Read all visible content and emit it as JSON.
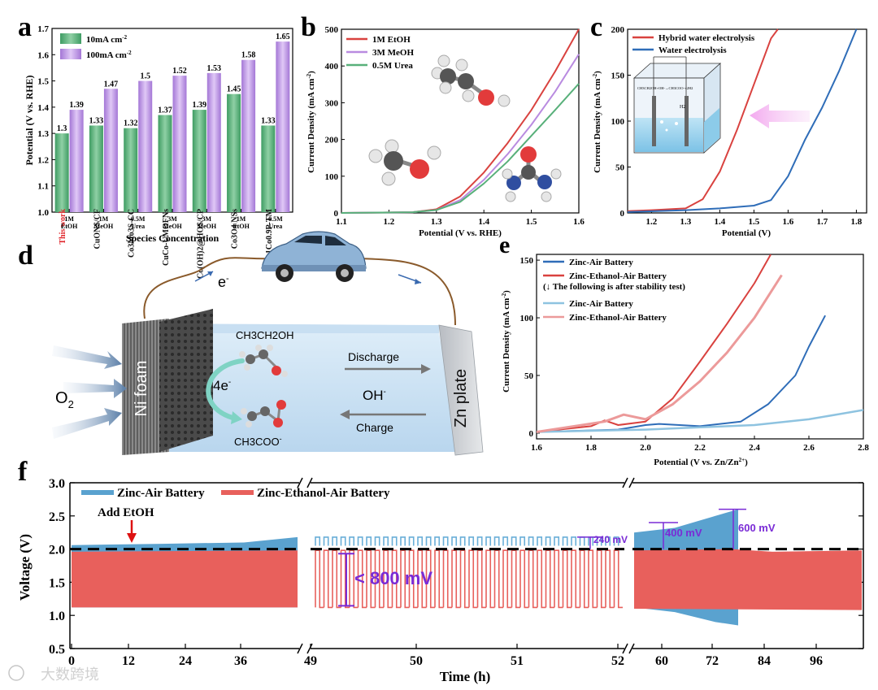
{
  "panel_labels": {
    "a": "a",
    "b": "b",
    "c": "c",
    "d": "d",
    "e": "e",
    "f": "f"
  },
  "watermark": "大数跨境",
  "colors": {
    "green": "#58b07a",
    "purple": "#b98be0",
    "red": "#d9423f",
    "blue": "#2f6db8",
    "lightblue": "#8ec3e0",
    "pink": "#ec9a9a"
  },
  "chart_data": [
    {
      "id": "a",
      "type": "bar",
      "ylabel": "Potential (V vs. RHE)",
      "xlabel": "Species Concentration",
      "ylim": [
        1.0,
        1.7
      ],
      "yticks": [
        "1.0",
        "1.1",
        "1.2",
        "1.3",
        "1.4",
        "1.5",
        "1.6",
        "1.7"
      ],
      "legend": [
        "10mA cm",
        "100mA cm"
      ],
      "legend_superscripts": [
        "-2",
        "-2"
      ],
      "categories": [
        "1M EtOH",
        "1M MeOH",
        "0.5M Urea",
        "3M MeOH",
        "3M MeOH",
        "1M EtOH",
        "0.5M Urea"
      ],
      "category_lines": [
        [
          "1M",
          "EtOH"
        ],
        [
          "1M",
          "MeOH"
        ],
        [
          "0.5M",
          "Urea"
        ],
        [
          "3M",
          "MeOH"
        ],
        [
          "3M",
          "MeOH"
        ],
        [
          "1M",
          "EtOH"
        ],
        [
          "0.5M",
          "Urea"
        ]
      ],
      "bar_names": [
        "This work",
        "CuONS/CF",
        "Co3Mo3S-CC",
        "CuCo-UMOFNs",
        "Co(OH)2@HOS/CP",
        "Co3O4 NSs",
        "Zn0.1Co0.9P-TM"
      ],
      "series": [
        {
          "name": "10mA cm-2",
          "values": [
            1.3,
            1.33,
            1.32,
            1.37,
            1.39,
            1.45,
            1.33
          ],
          "labels": [
            "1.3",
            "1.33",
            "1.32",
            "1.37",
            "1.39",
            "1.45",
            "1.33"
          ]
        },
        {
          "name": "100mA cm-2",
          "values": [
            1.39,
            1.47,
            1.5,
            1.52,
            1.53,
            1.58,
            1.65
          ],
          "labels": [
            "1.39",
            "1.47",
            "1.5",
            "1.52",
            "1.53",
            "1.58",
            "1.65"
          ]
        }
      ]
    },
    {
      "id": "b",
      "type": "line",
      "xlabel": "Potential (V vs. RHE)",
      "ylabel": "Current Density (mA cm",
      "ylabel_sup": "-2",
      "xlim": [
        1.1,
        1.6
      ],
      "ylim": [
        0,
        500
      ],
      "xticks": [
        "1.1",
        "1.2",
        "1.3",
        "1.4",
        "1.5",
        "1.6"
      ],
      "yticks": [
        "0",
        "100",
        "200",
        "300",
        "400",
        "500"
      ],
      "series": [
        {
          "name": "1M EtOH",
          "x": [
            1.1,
            1.25,
            1.3,
            1.35,
            1.4,
            1.45,
            1.5,
            1.55,
            1.6
          ],
          "y": [
            0,
            2,
            10,
            45,
            110,
            190,
            280,
            385,
            500
          ]
        },
        {
          "name": "3M MeOH",
          "x": [
            1.1,
            1.25,
            1.3,
            1.35,
            1.4,
            1.45,
            1.5,
            1.55,
            1.6
          ],
          "y": [
            0,
            2,
            8,
            35,
            90,
            160,
            240,
            330,
            432
          ]
        },
        {
          "name": "0.5M Urea",
          "x": [
            1.1,
            1.25,
            1.3,
            1.35,
            1.4,
            1.45,
            1.5,
            1.55,
            1.6
          ],
          "y": [
            0,
            2,
            8,
            30,
            80,
            140,
            210,
            280,
            352
          ]
        }
      ]
    },
    {
      "id": "c",
      "type": "line",
      "xlabel": "Potential (V)",
      "ylabel": "Current Density (mA cm",
      "ylabel_sup": "-2",
      "xlim": [
        1.13,
        1.83
      ],
      "ylim": [
        0,
        200
      ],
      "xticks": [
        "1.2",
        "1.3",
        "1.4",
        "1.5",
        "1.6",
        "1.7",
        "1.8"
      ],
      "yticks": [
        "0",
        "50",
        "100",
        "150",
        "200"
      ],
      "inset_text": [
        "CH3CH2OH+OH-→CH3COO-+2H2",
        "H2"
      ],
      "series": [
        {
          "name": "Hybrid water electrolysis",
          "x": [
            1.13,
            1.2,
            1.3,
            1.35,
            1.4,
            1.45,
            1.5,
            1.55,
            1.57
          ],
          "y": [
            2,
            3,
            5,
            15,
            45,
            90,
            140,
            190,
            200
          ]
        },
        {
          "name": "Water electrolysis",
          "x": [
            1.13,
            1.3,
            1.4,
            1.5,
            1.55,
            1.6,
            1.65,
            1.7,
            1.75,
            1.8
          ],
          "y": [
            1,
            3,
            5,
            8,
            14,
            40,
            80,
            115,
            155,
            200
          ]
        }
      ]
    },
    {
      "id": "e",
      "type": "line",
      "xlabel": "Potential (V vs. Zn/Zn",
      "xlabel_sup": "2+",
      "xlabel_end": ")",
      "ylabel": "Current Density (mA cm",
      "ylabel_sup": "-2",
      "xlim": [
        1.6,
        2.8
      ],
      "ylim": [
        -5,
        155
      ],
      "xticks": [
        "1.6",
        "1.8",
        "2.0",
        "2.2",
        "2.4",
        "2.6",
        "2.8"
      ],
      "yticks": [
        "0",
        "50",
        "100",
        "150"
      ],
      "legend_note": "(↓ The following is after stability test)",
      "series": [
        {
          "name": "Zinc-Air Battery",
          "x": [
            1.6,
            1.9,
            2.0,
            2.05,
            2.2,
            2.35,
            2.45,
            2.55,
            2.6,
            2.66
          ],
          "y": [
            1,
            3,
            7,
            8,
            6,
            10,
            25,
            50,
            75,
            102
          ]
        },
        {
          "name": "Zinc-Ethanol-Air Battery",
          "x": [
            1.6,
            1.8,
            1.85,
            1.9,
            2.0,
            2.1,
            2.2,
            2.3,
            2.4,
            2.46
          ],
          "y": [
            1,
            6,
            11,
            7,
            10,
            30,
            62,
            95,
            130,
            155
          ]
        },
        {
          "name": "Zinc-Air Battery",
          "x": [
            1.6,
            2.0,
            2.2,
            2.4,
            2.6,
            2.8
          ],
          "y": [
            1,
            3,
            5,
            7,
            12,
            20
          ]
        },
        {
          "name": "Zinc-Ethanol-Air Battery",
          "x": [
            1.6,
            1.85,
            1.92,
            2.0,
            2.1,
            2.2,
            2.3,
            2.4,
            2.5
          ],
          "y": [
            1,
            10,
            16,
            12,
            25,
            45,
            70,
            100,
            137
          ]
        }
      ]
    },
    {
      "id": "f",
      "type": "area",
      "xlabel": "Time (h)",
      "ylabel": "Voltage (V)",
      "ylim": [
        0.5,
        3.0
      ],
      "yticks": [
        "0.5",
        "1.0",
        "1.5",
        "2.0",
        "2.5",
        "3.0"
      ],
      "xticks_seg1": [
        "0",
        "12",
        "24",
        "36"
      ],
      "xtick_break": "49",
      "xticks_seg2": [
        "50",
        "51",
        "52"
      ],
      "xticks_seg3": [
        "60",
        "72",
        "84",
        "96"
      ],
      "legend": [
        "Zinc-Air Battery",
        "Zinc-Ethanol-Air Battery"
      ],
      "annotations": {
        "add": "Add EtOH",
        "gap": "< 800 mV",
        "d240": "240 mV",
        "d400": "400 mV",
        "d600": "600 mV"
      },
      "reference_voltage": 2.0,
      "zinc_ethanol_band": [
        1.12,
        1.98
      ],
      "zinc_air_band": [
        1.12,
        2.1
      ],
      "zinc_air_stability_end": [
        0.85,
        2.6
      ]
    }
  ],
  "panel_d": {
    "electron": "e",
    "electron_sup": "-",
    "o2": "O",
    "o2_sub": "2",
    "ni_foam": "Ni foam",
    "zn_plate": "Zn plate",
    "ethanol": "CH3CH2OH",
    "acetate": "CH3COO",
    "acetate_sup": "-",
    "four_e": "4e",
    "four_e_sup": "-",
    "discharge": "Discharge",
    "charge": "Charge",
    "hydroxide": "OH",
    "hydroxide_sup": "-"
  }
}
